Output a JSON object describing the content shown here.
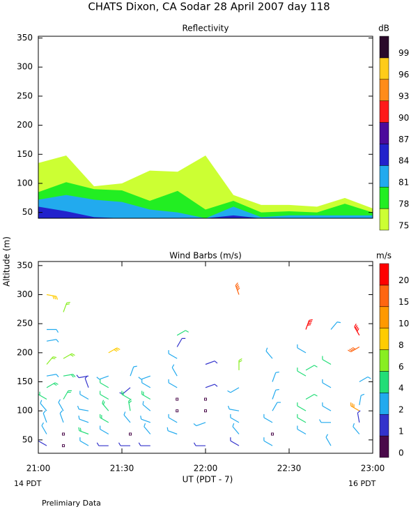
{
  "title": "CHATS Dixon, CA  Sodar  28 April 2007  day 118",
  "footnote": "Prelimiary Data",
  "chart_data": [
    {
      "type": "area",
      "title": "Reflectivity",
      "x": [
        21.0,
        21.1667,
        21.3333,
        21.5,
        21.6667,
        21.8333,
        22.0,
        22.1667,
        22.3333,
        22.5,
        22.6667,
        22.8333,
        23.0
      ],
      "xlim": [
        21,
        23
      ],
      "ylim": [
        40,
        353
      ],
      "yticks": [
        50,
        100,
        150,
        200,
        250,
        300,
        350
      ],
      "series": [
        {
          "name": "75",
          "color": "#ccff33",
          "values": [
            135,
            148,
            95,
            100,
            122,
            120,
            148,
            80,
            63,
            63,
            60,
            75,
            57
          ]
        },
        {
          "name": "78",
          "color": "#22ee22",
          "values": [
            85,
            102,
            90,
            88,
            70,
            87,
            55,
            70,
            50,
            52,
            50,
            65,
            50
          ]
        },
        {
          "name": "81",
          "color": "#22aaee",
          "values": [
            72,
            80,
            72,
            68,
            55,
            50,
            40,
            60,
            42,
            45,
            45,
            45,
            45
          ]
        },
        {
          "name": "84",
          "color": "#2222cc",
          "values": [
            60,
            52,
            42,
            40,
            40,
            40,
            40,
            45,
            40,
            40,
            40,
            40,
            40
          ]
        }
      ],
      "colorbar": {
        "unit": "dB",
        "levels": [
          75,
          78,
          81,
          84,
          87,
          90,
          93,
          96,
          99
        ],
        "colors": [
          "#ccff33",
          "#22ee22",
          "#22aaee",
          "#2222cc",
          "#4b0a9c",
          "#ff1a1a",
          "#ff8c1a",
          "#ffcc1a",
          "#2a0a2a"
        ]
      }
    },
    {
      "type": "barbs",
      "title": "Wind Barbs (m/s)",
      "ylabel": "Altitude (m)",
      "xlabel": "UT  (PDT - 7)",
      "xlim_labels": [
        "14 PDT",
        "16 PDT"
      ],
      "xlim": [
        21,
        23
      ],
      "ylim": [
        27,
        357
      ],
      "xticks": [
        {
          "value": 21,
          "label": "21:00"
        },
        {
          "value": 21.5,
          "label": "21:30"
        },
        {
          "value": 22,
          "label": "22:00"
        },
        {
          "value": 22.5,
          "label": "22:30"
        },
        {
          "value": 23,
          "label": "23:00"
        }
      ],
      "yticks": [
        50,
        100,
        150,
        200,
        250,
        300,
        350
      ],
      "barbs": {
        "x": [
          21.05,
          21.05,
          21.05,
          21.05,
          21.05,
          21.05,
          21.05,
          21.05,
          21.05,
          21.05,
          21.05,
          21.15,
          21.15,
          21.15,
          21.15,
          21.15,
          21.15,
          21.15,
          21.15,
          21.3,
          21.3,
          21.3,
          21.3,
          21.3,
          21.3,
          21.3,
          21.42,
          21.42,
          21.42,
          21.42,
          21.42,
          21.42,
          21.42,
          21.42,
          21.55,
          21.55,
          21.55,
          21.55,
          21.55,
          21.55,
          21.55,
          21.67,
          21.67,
          21.67,
          21.67,
          21.67,
          21.67,
          21.67,
          21.83,
          21.83,
          21.83,
          21.83,
          21.83,
          21.83,
          21.83,
          21.83,
          21.83,
          22.0,
          22.0,
          22.0,
          22.0,
          22.0,
          22.0,
          22.2,
          22.2,
          22.2,
          22.2,
          22.2,
          22.2,
          22.2,
          22.4,
          22.4,
          22.4,
          22.4,
          22.4,
          22.4,
          22.4,
          22.6,
          22.6,
          22.6,
          22.6,
          22.6,
          22.6,
          22.6,
          22.6,
          22.75,
          22.75,
          22.75,
          22.75,
          22.75,
          22.75,
          22.92,
          22.92,
          22.92,
          22.92,
          22.92,
          22.92,
          22.92
        ],
        "y": [
          300,
          240,
          220,
          180,
          160,
          140,
          120,
          100,
          80,
          60,
          40,
          270,
          190,
          160,
          120,
          100,
          80,
          60,
          40,
          160,
          140,
          120,
          100,
          80,
          60,
          40,
          200,
          160,
          140,
          120,
          100,
          80,
          60,
          40,
          160,
          140,
          120,
          100,
          80,
          60,
          40,
          160,
          140,
          120,
          100,
          80,
          60,
          40,
          230,
          210,
          190,
          160,
          140,
          120,
          100,
          80,
          60,
          180,
          140,
          120,
          100,
          80,
          40,
          300,
          170,
          140,
          100,
          80,
          60,
          40,
          190,
          150,
          120,
          100,
          80,
          60,
          40,
          240,
          200,
          170,
          160,
          120,
          100,
          80,
          60,
          240,
          180,
          140,
          100,
          80,
          40,
          230,
          210,
          150,
          110,
          100,
          80,
          60
        ],
        "speed": [
          9,
          3,
          3,
          6,
          3,
          5,
          5,
          3,
          2,
          3,
          1,
          6,
          6,
          5,
          5,
          3,
          2,
          0.5,
          0.5,
          1,
          1,
          3,
          3,
          3,
          5,
          2,
          8,
          2,
          4,
          4,
          5,
          5,
          2,
          1,
          2,
          1,
          5,
          5,
          3,
          0.5,
          1,
          2,
          3,
          5,
          3,
          3,
          3,
          1,
          4,
          1,
          3,
          2,
          3,
          0.5,
          0.5,
          3,
          2,
          1,
          1,
          0.5,
          0.5,
          2,
          1,
          15,
          6,
          2,
          2,
          2,
          3,
          1,
          3,
          2,
          2,
          2,
          2,
          0.5,
          2,
          20,
          3,
          4,
          4,
          4,
          4,
          4,
          3,
          3,
          4,
          2,
          2,
          2,
          2,
          20,
          15,
          3,
          3,
          10,
          1,
          3
        ],
        "direction": [
          100,
          90,
          80,
          40,
          80,
          60,
          300,
          320,
          340,
          330,
          300,
          20,
          60,
          80,
          30,
          330,
          340,
          0,
          0,
          260,
          340,
          300,
          280,
          290,
          290,
          300,
          60,
          250,
          300,
          300,
          320,
          300,
          300,
          270,
          20,
          230,
          300,
          350,
          320,
          0,
          270,
          250,
          300,
          300,
          310,
          290,
          320,
          270,
          60,
          30,
          300,
          330,
          300,
          0,
          0,
          300,
          290,
          70,
          70,
          0,
          0,
          250,
          270,
          340,
          0,
          240,
          280,
          300,
          320,
          300,
          320,
          20,
          20,
          30,
          300,
          0,
          300,
          20,
          300,
          60,
          300,
          60,
          300,
          300,
          300,
          40,
          300,
          300,
          300,
          270,
          330,
          330,
          240,
          60,
          10,
          300,
          350,
          320
        ]
      },
      "colorbar": {
        "unit": "m/s",
        "levels": [
          0,
          1,
          2,
          4,
          6,
          8,
          10,
          15,
          20
        ],
        "colors": [
          "#4a0a4a",
          "#3333cc",
          "#22aaee",
          "#22dd77",
          "#88ee22",
          "#ffcc00",
          "#ff9900",
          "#ff6611",
          "#ff0000"
        ]
      }
    }
  ]
}
